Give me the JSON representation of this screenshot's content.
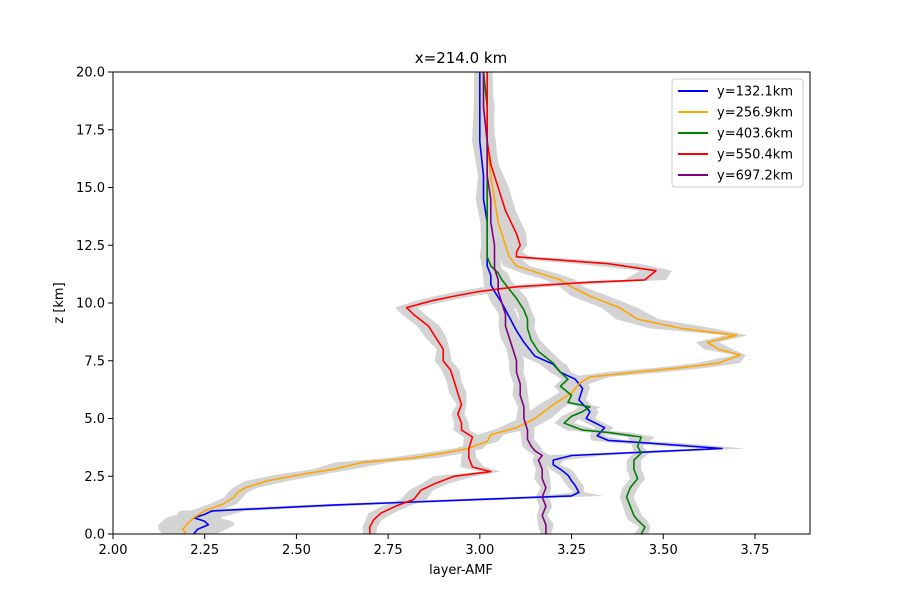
{
  "chart_data": {
    "type": "line",
    "title": "x=214.0 km",
    "xlabel": "layer-AMF",
    "ylabel": "z [km]",
    "xlim": [
      2.0,
      3.9
    ],
    "ylim": [
      0.0,
      20.0
    ],
    "xticks": [
      "2.00",
      "2.25",
      "2.50",
      "2.75",
      "3.00",
      "3.25",
      "3.50",
      "3.75"
    ],
    "xtick_values": [
      2.0,
      2.25,
      2.5,
      2.75,
      3.0,
      3.25,
      3.5,
      3.75
    ],
    "yticks": [
      "0.0",
      "2.5",
      "5.0",
      "7.5",
      "10.0",
      "12.5",
      "15.0",
      "17.5",
      "20.0"
    ],
    "ytick_values": [
      0.0,
      2.5,
      5.0,
      7.5,
      10.0,
      12.5,
      15.0,
      17.5,
      20.0
    ],
    "grid": false,
    "legend_position": "top-right",
    "uncertainty_band_color": "#d3d3d3",
    "series": [
      {
        "name": "y=132.1km",
        "color": "#0000ff",
        "points": [
          [
            2.22,
            0.0
          ],
          [
            2.23,
            0.2
          ],
          [
            2.26,
            0.4
          ],
          [
            2.25,
            0.55
          ],
          [
            2.22,
            0.7
          ],
          [
            2.25,
            0.85
          ],
          [
            2.27,
            1.0
          ],
          [
            2.6,
            1.25
          ],
          [
            3.0,
            1.5
          ],
          [
            3.25,
            1.65
          ],
          [
            3.27,
            1.8
          ],
          [
            3.26,
            2.1
          ],
          [
            3.25,
            2.3
          ],
          [
            3.24,
            2.55
          ],
          [
            3.22,
            2.8
          ],
          [
            3.2,
            3.0
          ],
          [
            3.2,
            3.2
          ],
          [
            3.25,
            3.4
          ],
          [
            3.66,
            3.7
          ],
          [
            3.45,
            3.95
          ],
          [
            3.35,
            4.05
          ],
          [
            3.32,
            4.25
          ],
          [
            3.34,
            4.6
          ],
          [
            3.29,
            5.0
          ],
          [
            3.3,
            5.3
          ],
          [
            3.27,
            5.8
          ],
          [
            3.28,
            6.3
          ],
          [
            3.26,
            6.7
          ],
          [
            3.22,
            7.0
          ],
          [
            3.2,
            7.35
          ],
          [
            3.15,
            7.7
          ],
          [
            3.12,
            8.3
          ],
          [
            3.1,
            8.8
          ],
          [
            3.08,
            9.4
          ],
          [
            3.06,
            10.0
          ],
          [
            3.04,
            10.5
          ],
          [
            3.03,
            10.8
          ],
          [
            3.03,
            11.2
          ],
          [
            3.02,
            11.6
          ],
          [
            3.02,
            12.0
          ],
          [
            3.02,
            12.5
          ],
          [
            3.02,
            13.5
          ],
          [
            3.01,
            14.5
          ],
          [
            3.01,
            15.5
          ],
          [
            3.0,
            17.0
          ],
          [
            3.0,
            18.5
          ],
          [
            3.0,
            20.0
          ]
        ]
      },
      {
        "name": "y=256.9km",
        "color": "#ffa500",
        "points": [
          [
            2.2,
            0.0
          ],
          [
            2.19,
            0.2
          ],
          [
            2.2,
            0.4
          ],
          [
            2.22,
            0.7
          ],
          [
            2.25,
            1.0
          ],
          [
            2.3,
            1.3
          ],
          [
            2.33,
            1.6
          ],
          [
            2.34,
            1.8
          ],
          [
            2.36,
            2.0
          ],
          [
            2.42,
            2.3
          ],
          [
            2.52,
            2.6
          ],
          [
            2.6,
            2.8
          ],
          [
            2.68,
            3.1
          ],
          [
            2.82,
            3.3
          ],
          [
            2.9,
            3.5
          ],
          [
            2.97,
            3.7
          ],
          [
            2.99,
            3.85
          ],
          [
            3.02,
            4.0
          ],
          [
            3.03,
            4.3
          ],
          [
            3.1,
            4.6
          ],
          [
            3.15,
            5.0
          ],
          [
            3.2,
            5.6
          ],
          [
            3.25,
            6.1
          ],
          [
            3.27,
            6.5
          ],
          [
            3.3,
            6.8
          ],
          [
            3.42,
            7.0
          ],
          [
            3.55,
            7.2
          ],
          [
            3.65,
            7.4
          ],
          [
            3.71,
            7.75
          ],
          [
            3.65,
            8.0
          ],
          [
            3.62,
            8.3
          ],
          [
            3.7,
            8.6
          ],
          [
            3.55,
            8.9
          ],
          [
            3.43,
            9.3
          ],
          [
            3.38,
            9.8
          ],
          [
            3.3,
            10.3
          ],
          [
            3.25,
            10.7
          ],
          [
            3.22,
            11.0
          ],
          [
            3.16,
            11.3
          ],
          [
            3.1,
            11.6
          ],
          [
            3.08,
            12.0
          ],
          [
            3.07,
            12.5
          ],
          [
            3.05,
            13.5
          ],
          [
            3.04,
            14.5
          ],
          [
            3.03,
            15.5
          ],
          [
            3.02,
            17.0
          ],
          [
            3.01,
            18.5
          ],
          [
            3.01,
            20.0
          ]
        ]
      },
      {
        "name": "y=403.6km",
        "color": "#008000",
        "points": [
          [
            3.44,
            0.0
          ],
          [
            3.45,
            0.3
          ],
          [
            3.43,
            0.6
          ],
          [
            3.42,
            0.8
          ],
          [
            3.41,
            1.2
          ],
          [
            3.4,
            1.6
          ],
          [
            3.41,
            2.0
          ],
          [
            3.43,
            2.4
          ],
          [
            3.42,
            2.8
          ],
          [
            3.42,
            3.2
          ],
          [
            3.44,
            3.5
          ],
          [
            3.43,
            3.8
          ],
          [
            3.44,
            4.2
          ],
          [
            3.35,
            4.4
          ],
          [
            3.28,
            4.5
          ],
          [
            3.23,
            4.8
          ],
          [
            3.25,
            5.1
          ],
          [
            3.28,
            5.3
          ],
          [
            3.3,
            5.5
          ],
          [
            3.24,
            5.7
          ],
          [
            3.25,
            6.0
          ],
          [
            3.22,
            6.4
          ],
          [
            3.24,
            6.7
          ],
          [
            3.22,
            7.0
          ],
          [
            3.2,
            7.4
          ],
          [
            3.16,
            7.9
          ],
          [
            3.14,
            8.4
          ],
          [
            3.13,
            8.9
          ],
          [
            3.13,
            9.3
          ],
          [
            3.12,
            9.7
          ],
          [
            3.1,
            10.2
          ],
          [
            3.08,
            10.6
          ],
          [
            3.06,
            11.0
          ],
          [
            3.05,
            11.3
          ],
          [
            3.03,
            11.6
          ],
          [
            3.02,
            12.0
          ],
          [
            3.02,
            12.5
          ],
          [
            3.02,
            14.0
          ],
          [
            3.02,
            15.5
          ],
          [
            3.02,
            17.0
          ],
          [
            3.02,
            18.5
          ],
          [
            3.01,
            20.0
          ]
        ]
      },
      {
        "name": "y=550.4km",
        "color": "#ff0000",
        "points": [
          [
            2.7,
            0.0
          ],
          [
            2.7,
            0.3
          ],
          [
            2.71,
            0.6
          ],
          [
            2.73,
            0.9
          ],
          [
            2.77,
            1.2
          ],
          [
            2.82,
            1.5
          ],
          [
            2.84,
            1.9
          ],
          [
            2.88,
            2.2
          ],
          [
            2.93,
            2.5
          ],
          [
            3.03,
            2.7
          ],
          [
            2.98,
            2.9
          ],
          [
            2.97,
            3.3
          ],
          [
            2.97,
            3.7
          ],
          [
            2.98,
            4.2
          ],
          [
            2.95,
            4.5
          ],
          [
            2.95,
            4.8
          ],
          [
            2.94,
            5.2
          ],
          [
            2.95,
            5.6
          ],
          [
            2.94,
            6.1
          ],
          [
            2.93,
            6.6
          ],
          [
            2.92,
            7.1
          ],
          [
            2.9,
            7.5
          ],
          [
            2.9,
            8.0
          ],
          [
            2.88,
            8.5
          ],
          [
            2.86,
            9.0
          ],
          [
            2.82,
            9.5
          ],
          [
            2.8,
            9.8
          ],
          [
            2.87,
            10.1
          ],
          [
            2.93,
            10.3
          ],
          [
            3.0,
            10.5
          ],
          [
            3.1,
            10.7
          ],
          [
            3.3,
            10.9
          ],
          [
            3.45,
            11.0
          ],
          [
            3.48,
            11.4
          ],
          [
            3.35,
            11.7
          ],
          [
            3.18,
            11.9
          ],
          [
            3.1,
            12.0
          ],
          [
            3.1,
            12.2
          ],
          [
            3.11,
            12.5
          ],
          [
            3.1,
            13.0
          ],
          [
            3.07,
            14.0
          ],
          [
            3.05,
            15.0
          ],
          [
            3.03,
            16.0
          ],
          [
            3.02,
            17.0
          ],
          [
            3.02,
            18.5
          ],
          [
            3.02,
            20.0
          ]
        ]
      },
      {
        "name": "y=697.2km",
        "color": "#800080",
        "points": [
          [
            3.18,
            0.0
          ],
          [
            3.18,
            0.4
          ],
          [
            3.17,
            0.8
          ],
          [
            3.18,
            1.2
          ],
          [
            3.17,
            1.6
          ],
          [
            3.18,
            2.0
          ],
          [
            3.17,
            2.4
          ],
          [
            3.17,
            2.8
          ],
          [
            3.16,
            3.2
          ],
          [
            3.17,
            3.4
          ],
          [
            3.15,
            3.6
          ],
          [
            3.14,
            3.8
          ],
          [
            3.13,
            4.1
          ],
          [
            3.13,
            4.5
          ],
          [
            3.12,
            5.0
          ],
          [
            3.12,
            5.5
          ],
          [
            3.11,
            6.0
          ],
          [
            3.11,
            6.5
          ],
          [
            3.1,
            7.0
          ],
          [
            3.1,
            7.5
          ],
          [
            3.09,
            8.0
          ],
          [
            3.08,
            8.5
          ],
          [
            3.07,
            9.0
          ],
          [
            3.07,
            9.5
          ],
          [
            3.06,
            10.0
          ],
          [
            3.05,
            10.5
          ],
          [
            3.05,
            11.0
          ],
          [
            3.04,
            11.5
          ],
          [
            3.04,
            12.0
          ],
          [
            3.04,
            12.5
          ],
          [
            3.03,
            13.5
          ],
          [
            3.03,
            14.5
          ],
          [
            3.02,
            15.5
          ],
          [
            3.02,
            17.0
          ],
          [
            3.01,
            18.5
          ],
          [
            3.01,
            20.0
          ]
        ]
      }
    ]
  }
}
